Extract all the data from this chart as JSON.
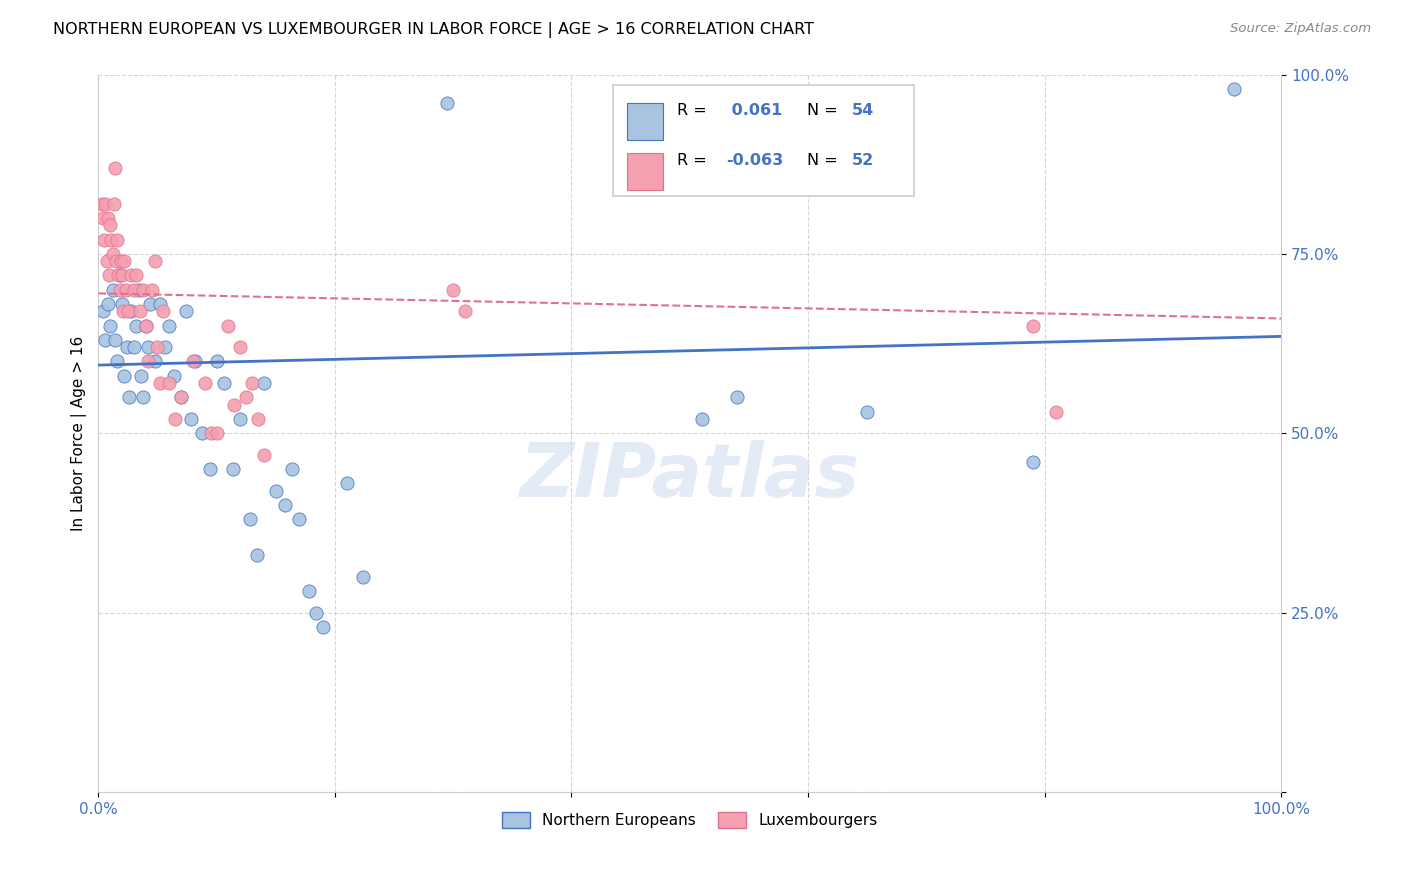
{
  "title": "NORTHERN EUROPEAN VS LUXEMBOURGER IN LABOR FORCE | AGE > 16 CORRELATION CHART",
  "source": "Source: ZipAtlas.com",
  "ylabel": "In Labor Force | Age > 16",
  "watermark": "ZIPatlas",
  "xlim": [
    0,
    1.0
  ],
  "ylim": [
    0,
    1.0
  ],
  "legend_blue_label": "Northern Europeans",
  "legend_pink_label": "Luxembourgers",
  "r_blue": "0.061",
  "n_blue": "54",
  "r_pink": "-0.063",
  "n_pink": "52",
  "blue_color": "#a8c4e0",
  "pink_color": "#f4a0b0",
  "blue_line_color": "#4472c4",
  "pink_line_color": "#e07090",
  "text_blue_color": "#4472c4",
  "blue_scatter": [
    [
      0.004,
      0.67
    ],
    [
      0.006,
      0.63
    ],
    [
      0.008,
      0.68
    ],
    [
      0.01,
      0.65
    ],
    [
      0.012,
      0.7
    ],
    [
      0.014,
      0.63
    ],
    [
      0.016,
      0.6
    ],
    [
      0.018,
      0.72
    ],
    [
      0.02,
      0.68
    ],
    [
      0.022,
      0.58
    ],
    [
      0.024,
      0.62
    ],
    [
      0.026,
      0.55
    ],
    [
      0.028,
      0.67
    ],
    [
      0.03,
      0.62
    ],
    [
      0.032,
      0.65
    ],
    [
      0.034,
      0.7
    ],
    [
      0.036,
      0.58
    ],
    [
      0.038,
      0.55
    ],
    [
      0.04,
      0.65
    ],
    [
      0.042,
      0.62
    ],
    [
      0.044,
      0.68
    ],
    [
      0.048,
      0.6
    ],
    [
      0.052,
      0.68
    ],
    [
      0.056,
      0.62
    ],
    [
      0.06,
      0.65
    ],
    [
      0.064,
      0.58
    ],
    [
      0.07,
      0.55
    ],
    [
      0.074,
      0.67
    ],
    [
      0.078,
      0.52
    ],
    [
      0.082,
      0.6
    ],
    [
      0.088,
      0.5
    ],
    [
      0.094,
      0.45
    ],
    [
      0.1,
      0.6
    ],
    [
      0.106,
      0.57
    ],
    [
      0.114,
      0.45
    ],
    [
      0.12,
      0.52
    ],
    [
      0.128,
      0.38
    ],
    [
      0.134,
      0.33
    ],
    [
      0.14,
      0.57
    ],
    [
      0.15,
      0.42
    ],
    [
      0.158,
      0.4
    ],
    [
      0.164,
      0.45
    ],
    [
      0.17,
      0.38
    ],
    [
      0.178,
      0.28
    ],
    [
      0.184,
      0.25
    ],
    [
      0.19,
      0.23
    ],
    [
      0.21,
      0.43
    ],
    [
      0.224,
      0.3
    ],
    [
      0.295,
      0.96
    ],
    [
      0.51,
      0.52
    ],
    [
      0.54,
      0.55
    ],
    [
      0.65,
      0.53
    ],
    [
      0.96,
      0.98
    ],
    [
      0.79,
      0.46
    ]
  ],
  "pink_scatter": [
    [
      0.003,
      0.82
    ],
    [
      0.004,
      0.8
    ],
    [
      0.005,
      0.77
    ],
    [
      0.006,
      0.82
    ],
    [
      0.007,
      0.74
    ],
    [
      0.008,
      0.8
    ],
    [
      0.009,
      0.72
    ],
    [
      0.01,
      0.79
    ],
    [
      0.011,
      0.77
    ],
    [
      0.012,
      0.75
    ],
    [
      0.013,
      0.82
    ],
    [
      0.014,
      0.87
    ],
    [
      0.015,
      0.74
    ],
    [
      0.016,
      0.77
    ],
    [
      0.017,
      0.72
    ],
    [
      0.018,
      0.7
    ],
    [
      0.019,
      0.74
    ],
    [
      0.02,
      0.72
    ],
    [
      0.021,
      0.67
    ],
    [
      0.022,
      0.74
    ],
    [
      0.023,
      0.7
    ],
    [
      0.025,
      0.67
    ],
    [
      0.028,
      0.72
    ],
    [
      0.03,
      0.7
    ],
    [
      0.032,
      0.72
    ],
    [
      0.035,
      0.67
    ],
    [
      0.038,
      0.7
    ],
    [
      0.04,
      0.65
    ],
    [
      0.042,
      0.6
    ],
    [
      0.045,
      0.7
    ],
    [
      0.048,
      0.74
    ],
    [
      0.05,
      0.62
    ],
    [
      0.052,
      0.57
    ],
    [
      0.055,
      0.67
    ],
    [
      0.06,
      0.57
    ],
    [
      0.065,
      0.52
    ],
    [
      0.07,
      0.55
    ],
    [
      0.08,
      0.6
    ],
    [
      0.09,
      0.57
    ],
    [
      0.095,
      0.5
    ],
    [
      0.1,
      0.5
    ],
    [
      0.11,
      0.65
    ],
    [
      0.115,
      0.54
    ],
    [
      0.12,
      0.62
    ],
    [
      0.125,
      0.55
    ],
    [
      0.13,
      0.57
    ],
    [
      0.135,
      0.52
    ],
    [
      0.14,
      0.47
    ],
    [
      0.3,
      0.7
    ],
    [
      0.31,
      0.67
    ],
    [
      0.79,
      0.65
    ],
    [
      0.81,
      0.53
    ]
  ]
}
